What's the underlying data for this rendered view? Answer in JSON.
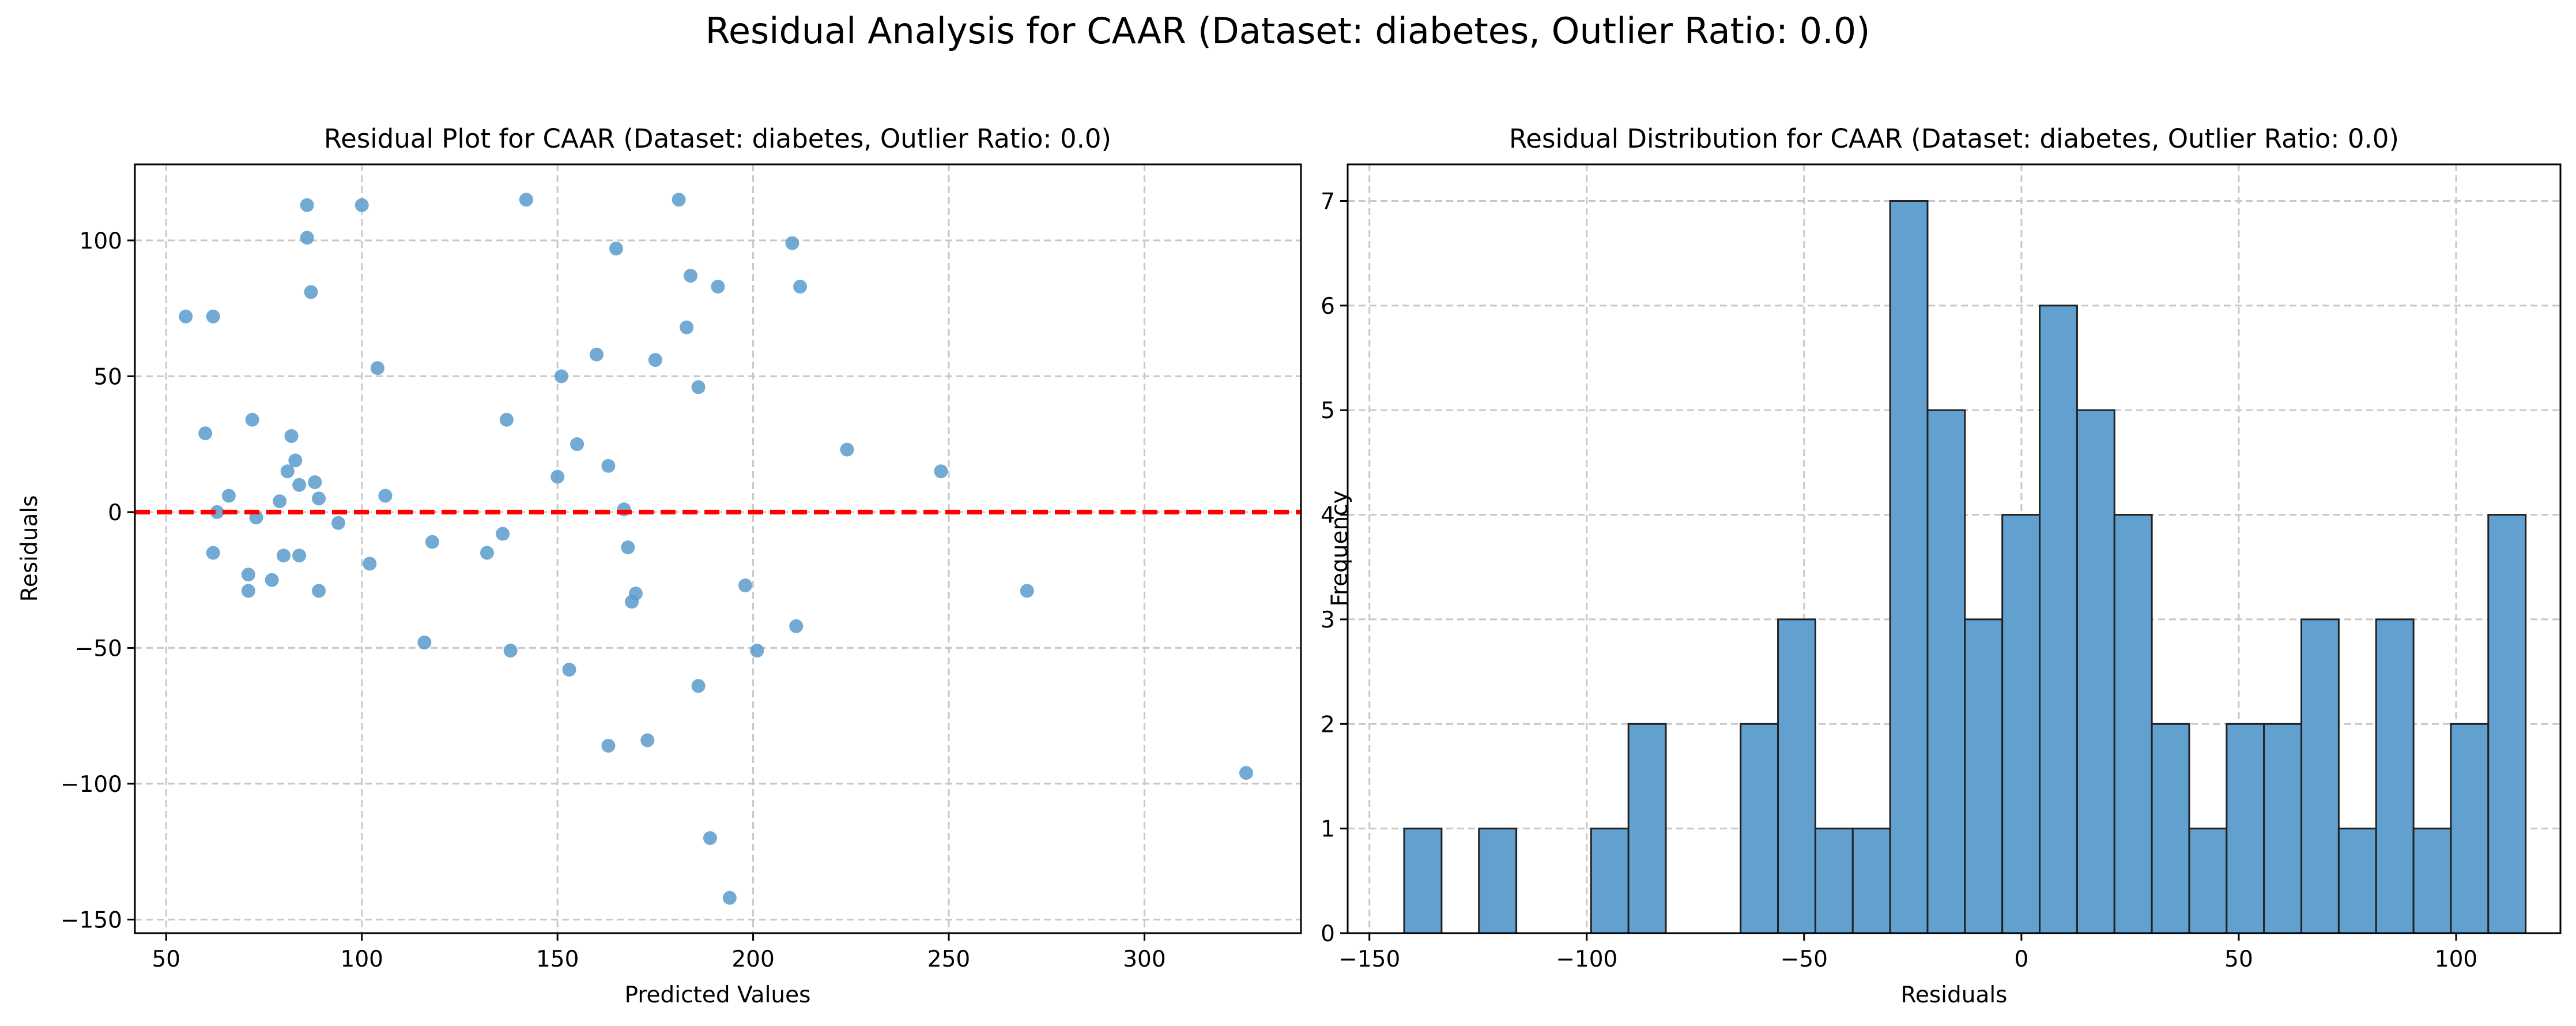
{
  "suptitle": "Residual Analysis for CAAR (Dataset: diabetes, Outlier Ratio: 0.0)",
  "colors": {
    "marker": "#5b9bcd",
    "bar": "#62a0cf",
    "bar_edge": "#222222",
    "zero_line": "#ff0000",
    "grid": "#c8c8c8"
  },
  "chart_data": [
    {
      "type": "scatter",
      "title": "Residual Plot for CAAR (Dataset: diabetes, Outlier Ratio: 0.0)",
      "xlabel": "Predicted Values",
      "ylabel": "Residuals",
      "xlim": [
        42,
        340
      ],
      "ylim": [
        -155,
        128
      ],
      "xticks": [
        50,
        100,
        150,
        200,
        250,
        300
      ],
      "yticks": [
        -150,
        -100,
        -50,
        0,
        50,
        100
      ],
      "grid": true,
      "reference_line": {
        "y": 0,
        "style": "dashed",
        "color": "red"
      },
      "points": [
        [
          55,
          72
        ],
        [
          60,
          29
        ],
        [
          62,
          72
        ],
        [
          62,
          -15
        ],
        [
          63,
          0
        ],
        [
          66,
          6
        ],
        [
          71,
          -23
        ],
        [
          71,
          -29
        ],
        [
          72,
          34
        ],
        [
          73,
          -2
        ],
        [
          77,
          -25
        ],
        [
          79,
          4
        ],
        [
          80,
          -16
        ],
        [
          81,
          15
        ],
        [
          82,
          28
        ],
        [
          83,
          19
        ],
        [
          84,
          -16
        ],
        [
          84,
          10
        ],
        [
          86,
          113
        ],
        [
          86,
          101
        ],
        [
          87,
          81
        ],
        [
          88,
          11
        ],
        [
          89,
          5
        ],
        [
          89,
          -29
        ],
        [
          94,
          -4
        ],
        [
          100,
          113
        ],
        [
          102,
          -19
        ],
        [
          104,
          53
        ],
        [
          106,
          6
        ],
        [
          116,
          -48
        ],
        [
          118,
          -11
        ],
        [
          132,
          -15
        ],
        [
          136,
          -8
        ],
        [
          137,
          34
        ],
        [
          138,
          -51
        ],
        [
          142,
          115
        ],
        [
          150,
          13
        ],
        [
          151,
          50
        ],
        [
          153,
          -58
        ],
        [
          155,
          25
        ],
        [
          160,
          58
        ],
        [
          163,
          17
        ],
        [
          163,
          -86
        ],
        [
          165,
          97
        ],
        [
          167,
          1
        ],
        [
          168,
          -13
        ],
        [
          169,
          -33
        ],
        [
          170,
          -30
        ],
        [
          173,
          -84
        ],
        [
          175,
          56
        ],
        [
          181,
          115
        ],
        [
          183,
          68
        ],
        [
          184,
          87
        ],
        [
          186,
          -64
        ],
        [
          186,
          46
        ],
        [
          189,
          -120
        ],
        [
          191,
          83
        ],
        [
          194,
          -142
        ],
        [
          198,
          -27
        ],
        [
          201,
          -51
        ],
        [
          210,
          99
        ],
        [
          211,
          -42
        ],
        [
          212,
          83
        ],
        [
          224,
          23
        ],
        [
          248,
          15
        ],
        [
          270,
          -29
        ],
        [
          326,
          -96
        ]
      ]
    },
    {
      "type": "bar",
      "title": "Residual Distribution for CAAR (Dataset: diabetes, Outlier Ratio: 0.0)",
      "xlabel": "Residuals",
      "ylabel": "Frequency",
      "xlim": [
        -155,
        124
      ],
      "ylim": [
        0,
        7.35
      ],
      "xticks": [
        -150,
        -100,
        -50,
        0,
        50,
        100
      ],
      "yticks": [
        0,
        1,
        2,
        3,
        4,
        5,
        6,
        7
      ],
      "grid": true,
      "bin_start": -142,
      "bin_width": 8.6,
      "values": [
        1,
        0,
        1,
        0,
        0,
        1,
        2,
        0,
        0,
        2,
        3,
        1,
        1,
        7,
        5,
        3,
        4,
        6,
        5,
        4,
        2,
        1,
        2,
        2,
        3,
        1,
        3,
        1,
        2,
        4
      ]
    }
  ]
}
